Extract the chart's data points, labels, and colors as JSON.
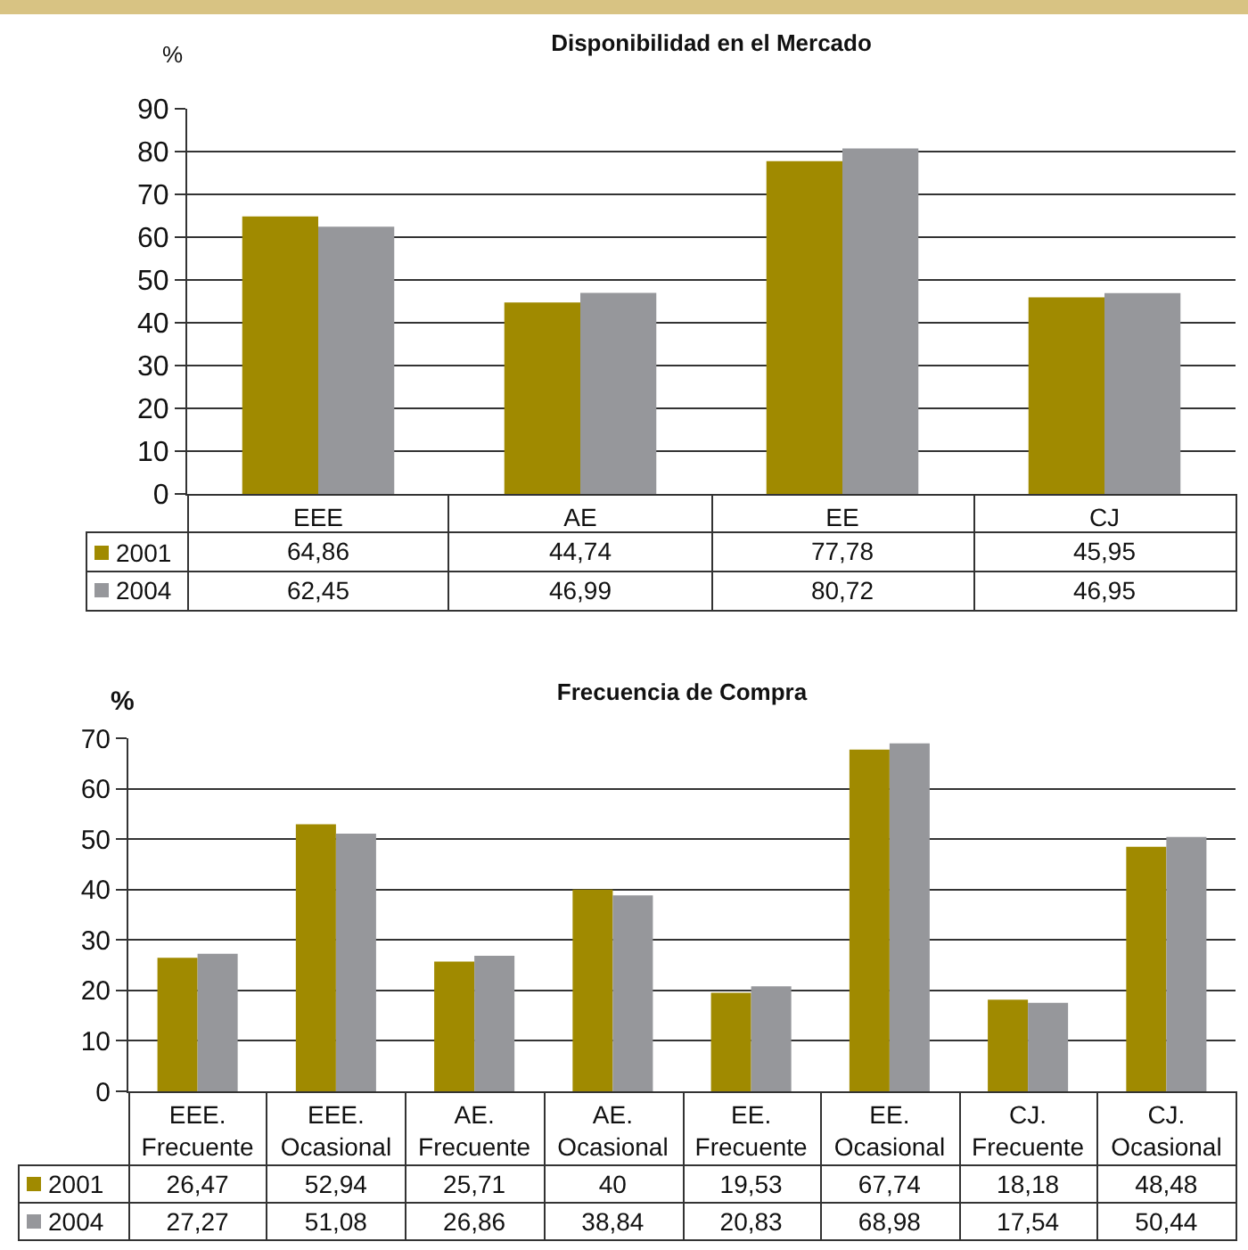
{
  "chart_data": [
    {
      "type": "bar",
      "title": "Disponibilidad en el Mercado",
      "ylabel": "%",
      "categories": [
        "EEE",
        "AE",
        "EE",
        "CJ"
      ],
      "series": [
        {
          "name": "2001",
          "color": "#a08a00",
          "values": [
            64.86,
            44.74,
            77.78,
            45.95
          ],
          "value_labels": [
            "64,86",
            "44,74",
            "77,78",
            "45,95"
          ]
        },
        {
          "name": "2004",
          "color": "#96979b",
          "values": [
            62.45,
            46.99,
            80.72,
            46.95
          ],
          "value_labels": [
            "62,45",
            "46,99",
            "80,72",
            "46,95"
          ]
        }
      ],
      "ylim": [
        0,
        90
      ],
      "yticks": [
        0,
        10,
        20,
        30,
        40,
        50,
        60,
        70,
        80,
        90
      ],
      "grid": "y",
      "legend": "bottom left"
    },
    {
      "type": "bar",
      "title": "Frecuencia de Compra",
      "ylabel": "%",
      "categories": [
        "EEE. Frecuente",
        "EEE. Ocasional",
        "AE. Frecuente",
        "AE. Ocasional",
        "EE. Frecuente",
        "EE. Ocasional",
        "CJ. Frecuente",
        "CJ. Ocasional"
      ],
      "series": [
        {
          "name": "2001",
          "color": "#a08a00",
          "values": [
            26.47,
            52.94,
            25.71,
            40,
            19.53,
            67.74,
            18.18,
            48.48
          ],
          "value_labels": [
            "26,47",
            "52,94",
            "25,71",
            "40",
            "19,53",
            "67,74",
            "18,18",
            "48,48"
          ]
        },
        {
          "name": "2004",
          "color": "#96979b",
          "values": [
            27.27,
            51.08,
            26.86,
            38.84,
            20.83,
            68.98,
            17.54,
            50.44
          ],
          "value_labels": [
            "27,27",
            "51,08",
            "26,86",
            "38,84",
            "20,83",
            "68,98",
            "17,54",
            "50,44"
          ]
        }
      ],
      "ylim": [
        0,
        70
      ],
      "yticks": [
        0,
        10,
        20,
        30,
        40,
        50,
        60,
        70
      ],
      "grid": "y",
      "legend": "bottom left"
    }
  ]
}
